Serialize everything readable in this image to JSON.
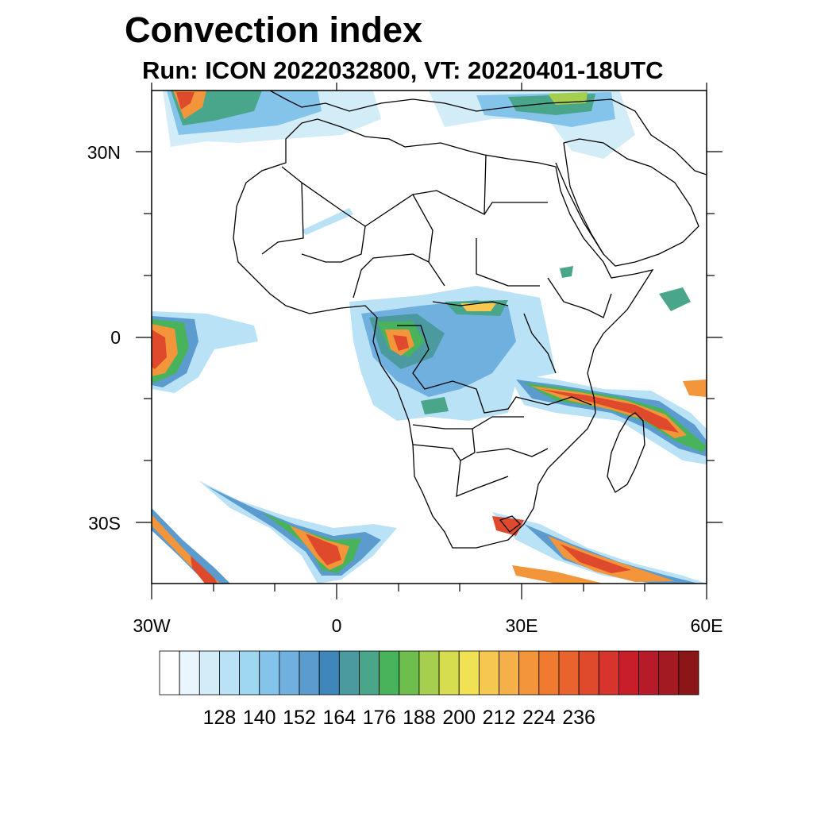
{
  "header": {
    "title": "Convection index",
    "subtitle": "Run: ICON 2022032800,  VT: 20220401-18UTC"
  },
  "map": {
    "lat_labels": [
      "30N",
      "0",
      "30S"
    ],
    "lon_labels": [
      "30W",
      "0",
      "30E",
      "60E"
    ],
    "lon_range": [
      -30,
      60
    ],
    "lat_range": [
      -40,
      40
    ],
    "fill_levels": [
      {
        "value": 128,
        "color": "#d2ecf8"
      },
      {
        "value": 140,
        "color": "#9fd6f0"
      },
      {
        "value": 152,
        "color": "#5b9bcd"
      },
      {
        "value": 164,
        "color": "#4aa68a"
      },
      {
        "value": 176,
        "color": "#a6cf4f"
      },
      {
        "value": 188,
        "color": "#f6c84f"
      },
      {
        "value": 200,
        "color": "#f3953a"
      },
      {
        "value": 212,
        "color": "#e04a2c"
      },
      {
        "value": 224,
        "color": "#c81e2a"
      },
      {
        "value": 236,
        "color": "#8c1518"
      }
    ]
  },
  "colorbar": {
    "colors": [
      "#ffffff",
      "#eaf6fd",
      "#d2ecf8",
      "#b9e2f6",
      "#9fd6f0",
      "#85c4ea",
      "#70b0df",
      "#5b9bcd",
      "#3f86bb",
      "#4a9a9f",
      "#4aa68a",
      "#48b35a",
      "#6dbe4c",
      "#a6cf4f",
      "#d6de50",
      "#f1e253",
      "#f6c84f",
      "#f5b049",
      "#f3953a",
      "#ef7a30",
      "#e9632e",
      "#e04a2c",
      "#d6342c",
      "#c81e2a",
      "#b71a28",
      "#a31a22",
      "#8c1518"
    ],
    "labels": [
      "128",
      "140",
      "152",
      "164",
      "176",
      "188",
      "200",
      "212",
      "224",
      "236"
    ]
  }
}
